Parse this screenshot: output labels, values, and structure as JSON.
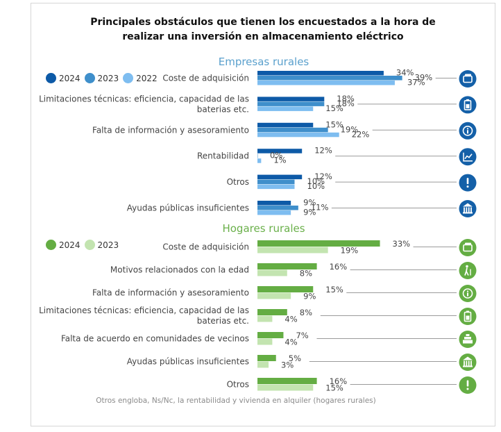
{
  "title_line1": "Principales obstáculos que tienen los encuestados a la hora de",
  "title_line2": "realizar una inversión en almacenamiento eléctrico",
  "footnote": "Otros engloba, Ns/Nc, la rentabilidad y vivienda en alquiler (hogares rurales)",
  "chart_data": [
    {
      "type": "bar",
      "orientation": "horizontal",
      "title": "Empresas rurales",
      "series": [
        {
          "name": "2024",
          "color": "#0d5aa7"
        },
        {
          "name": "2023",
          "color": "#3f8fcb"
        },
        {
          "name": "2022",
          "color": "#7ebdf0"
        }
      ],
      "categories": [
        {
          "label": [
            "Coste de adquisición"
          ],
          "values": [
            34,
            39,
            37
          ],
          "value_labels": [
            "34%",
            "39%",
            "37%"
          ],
          "icon": "wallet-icon"
        },
        {
          "label": [
            "Limitaciones técnicas: eficiencia, capacidad de las",
            "baterias etc."
          ],
          "values": [
            18,
            18,
            15
          ],
          "value_labels": [
            "18%",
            "18%",
            "15%"
          ],
          "icon": "battery-icon"
        },
        {
          "label": [
            "Falta de información y asesoramiento"
          ],
          "values": [
            15,
            19,
            22
          ],
          "value_labels": [
            "15%",
            "19%",
            "22%"
          ],
          "icon": "info-icon"
        },
        {
          "label": [
            "Rentabilidad"
          ],
          "values": [
            12,
            0,
            1
          ],
          "value_labels": [
            "12%",
            "0%",
            "1%"
          ],
          "icon": "trend-chart-icon"
        },
        {
          "label": [
            "Otros"
          ],
          "values": [
            12,
            10,
            10
          ],
          "value_labels": [
            "12%",
            "10%",
            "10%"
          ],
          "icon": "exclamation-icon"
        },
        {
          "label": [
            "Ayudas públicas insuficientes"
          ],
          "values": [
            9,
            11,
            9
          ],
          "value_labels": [
            "9%",
            "11%",
            "9%"
          ],
          "icon": "bank-icon"
        }
      ]
    },
    {
      "type": "bar",
      "orientation": "horizontal",
      "title": "Hogares rurales",
      "series": [
        {
          "name": "2024",
          "color": "#64ad43"
        },
        {
          "name": "2023",
          "color": "#c3e4b0"
        }
      ],
      "categories": [
        {
          "label": [
            "Coste de adquisición"
          ],
          "values": [
            33,
            19
          ],
          "value_labels": [
            "33%",
            "19%"
          ],
          "icon": "wallet-icon"
        },
        {
          "label": [
            "Motivos relacionados con la edad"
          ],
          "values": [
            16,
            8
          ],
          "value_labels": [
            "16%",
            "8%"
          ],
          "icon": "elderly-person-icon"
        },
        {
          "label": [
            "Falta de información y asesoramiento"
          ],
          "values": [
            15,
            9
          ],
          "value_labels": [
            "15%",
            "9%"
          ],
          "icon": "info-icon"
        },
        {
          "label": [
            "Limitaciones técnicas: eficiencia, capacidad de las",
            "baterias etc."
          ],
          "values": [
            8,
            4
          ],
          "value_labels": [
            "8%",
            "4%"
          ],
          "icon": "battery-icon"
        },
        {
          "label": [
            "Falta de acuerdo en comunidades de vecinos"
          ],
          "values": [
            7,
            4
          ],
          "value_labels": [
            "7%",
            "4%"
          ],
          "icon": "community-icon"
        },
        {
          "label": [
            "Ayudas públicas insuficientes"
          ],
          "values": [
            5,
            3
          ],
          "value_labels": [
            "5%",
            "3%"
          ],
          "icon": "bank-icon"
        },
        {
          "label": [
            "Otros"
          ],
          "values": [
            16,
            15
          ],
          "value_labels": [
            "16%",
            "15%"
          ],
          "icon": "exclamation-icon"
        }
      ]
    }
  ]
}
